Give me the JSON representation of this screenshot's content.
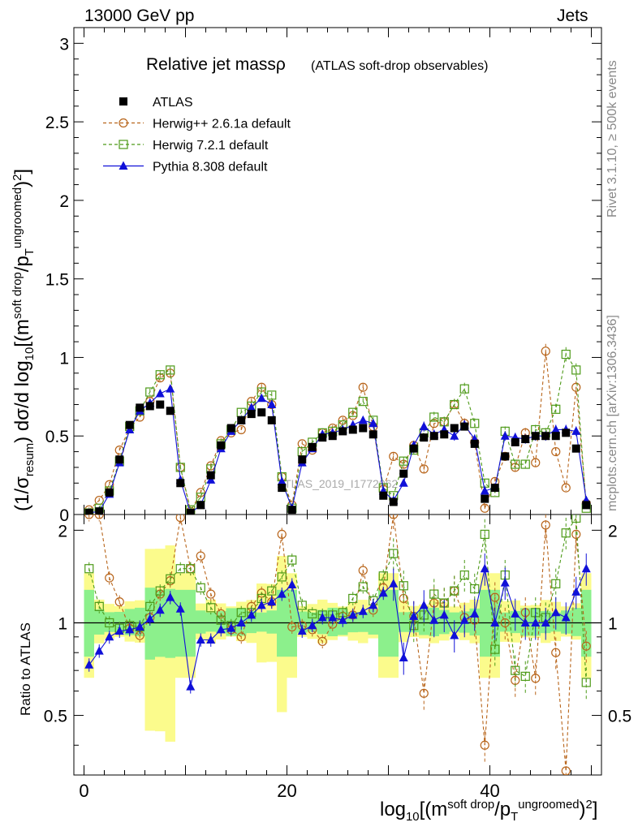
{
  "header": {
    "left": "13000 GeV pp",
    "right": "Jets",
    "rivet": "Rivet 3.1.10, ≥ 500k events",
    "mcplots": "mcplots.cern.ch [arXiv:1306.3436]",
    "watermark": "ATLAS_2019_I1772062"
  },
  "chart_data": {
    "type": "scatter",
    "title": "Relative jet massρ",
    "subtitle": "(ATLAS soft-drop observables)",
    "ylabel": {
      "pre": "(1/σ",
      "sub": "resum",
      "mid": ") dσ/d log",
      "sub2": "10",
      "mid2": "[(m",
      "sup": "soft drop",
      "mid3": "/p",
      "sub3": "T",
      "sup2": "ungroomed",
      "post": ")",
      "sup3": "2",
      "post2": "]"
    },
    "xlabel": {
      "pre": "log",
      "sub": "10",
      "mid": "[(m",
      "sup": "soft drop",
      "mid2": "/p",
      "sub2": "T",
      "sup2": "ungroomed",
      "post": ")",
      "sup3": "2",
      "post2": "]"
    },
    "ratio_ylabel": "Ratio to ATLAS",
    "xlim": [
      -1,
      51
    ],
    "ylim": [
      0,
      3.1
    ],
    "ratio_ylim": [
      0.32,
      2.25
    ],
    "x_ticks": [
      "0",
      "20",
      "40"
    ],
    "y_ticks": [
      "0",
      "0.5",
      "1",
      "1.5",
      "2",
      "2.5",
      "3"
    ],
    "ratio_ticks": [
      "0.5",
      "1",
      "2"
    ],
    "x": [
      0.5,
      1.5,
      2.5,
      3.5,
      4.5,
      5.5,
      6.5,
      7.5,
      8.5,
      9.5,
      10.5,
      11.5,
      12.5,
      13.5,
      14.5,
      15.5,
      16.5,
      17.5,
      18.5,
      19.5,
      20.5,
      21.5,
      22.5,
      23.5,
      24.5,
      25.5,
      26.5,
      27.5,
      28.5,
      29.5,
      30.5,
      31.5,
      32.5,
      33.5,
      34.5,
      35.5,
      36.5,
      37.5,
      38.5,
      39.5,
      40.5,
      41.5,
      42.5,
      43.5,
      44.5,
      45.5,
      46.5,
      47.5,
      48.5,
      49.5
    ],
    "legend": [
      "ATLAS",
      "Herwig++ 2.6.1a default",
      "Herwig 7.2.1 default",
      "Pythia 8.308 default"
    ],
    "colors": {
      "ATLAS": "#000000",
      "Herwig++": "#b8651b",
      "Herwig7": "#4d9a18",
      "Pythia": "#1010d8",
      "band_inner": "#8cf08c",
      "band_outer": "#fbfb8c"
    },
    "series": [
      {
        "name": "ATLAS",
        "values": [
          0.01,
          0.02,
          0.14,
          0.35,
          0.57,
          0.68,
          0.69,
          0.7,
          0.66,
          0.2,
          0.01,
          0.06,
          0.25,
          0.44,
          0.55,
          0.6,
          0.64,
          0.65,
          0.6,
          0.17,
          0.03,
          0.35,
          0.43,
          0.49,
          0.5,
          0.53,
          0.54,
          0.55,
          0.51,
          0.12,
          0.08,
          0.26,
          0.42,
          0.49,
          0.5,
          0.51,
          0.55,
          0.56,
          0.45,
          0.1,
          0.17,
          0.37,
          0.46,
          0.48,
          0.5,
          0.5,
          0.5,
          0.52,
          0.42,
          0.06
        ]
      },
      {
        "name": "Herwig++ 2.6.1a default",
        "values": [
          0.03,
          0.09,
          0.19,
          0.41,
          0.55,
          0.62,
          0.72,
          0.87,
          0.9,
          0.3,
          0.02,
          0.14,
          0.31,
          0.47,
          0.52,
          0.54,
          0.72,
          0.81,
          0.7,
          0.24,
          0.06,
          0.45,
          0.41,
          0.52,
          0.55,
          0.6,
          0.63,
          0.81,
          0.56,
          0.16,
          0.37,
          0.32,
          0.44,
          0.29,
          0.58,
          0.59,
          0.7,
          0.58,
          0.46,
          0.04,
          0.21,
          0.37,
          0.3,
          0.52,
          0.33,
          1.04,
          0.4,
          0.17,
          0.81,
          0.07
        ]
      },
      {
        "name": "Herwig 7.2.1 default",
        "values": [
          0.01,
          0.04,
          0.15,
          0.34,
          0.56,
          0.66,
          0.78,
          0.89,
          0.92,
          0.3,
          0.03,
          0.11,
          0.29,
          0.45,
          0.54,
          0.65,
          0.69,
          0.78,
          0.76,
          0.24,
          0.04,
          0.4,
          0.46,
          0.52,
          0.53,
          0.57,
          0.65,
          0.72,
          0.6,
          0.17,
          0.12,
          0.34,
          0.41,
          0.52,
          0.62,
          0.59,
          0.7,
          0.8,
          0.58,
          0.2,
          0.14,
          0.53,
          0.32,
          0.32,
          0.54,
          0.52,
          0.67,
          1.02,
          0.92,
          0.04
        ]
      },
      {
        "name": "Pythia 8.308 default",
        "values": [
          0.01,
          0.02,
          0.13,
          0.33,
          0.54,
          0.66,
          0.71,
          0.77,
          0.8,
          0.22,
          0.01,
          0.06,
          0.22,
          0.42,
          0.53,
          0.6,
          0.68,
          0.74,
          0.7,
          0.21,
          0.04,
          0.33,
          0.42,
          0.51,
          0.52,
          0.54,
          0.57,
          0.6,
          0.58,
          0.15,
          0.09,
          0.2,
          0.44,
          0.56,
          0.51,
          0.54,
          0.5,
          0.57,
          0.48,
          0.15,
          0.17,
          0.5,
          0.49,
          0.48,
          0.5,
          0.5,
          0.54,
          0.54,
          0.53,
          0.09
        ]
      }
    ],
    "ratio_series": [
      {
        "name": "Herwig++ 2.6.1a default",
        "values": [
          2.3,
          2.3,
          1.4,
          1.17,
          0.96,
          0.91,
          1.04,
          1.24,
          1.37,
          2.2,
          1.5,
          1.65,
          1.24,
          1.07,
          0.95,
          0.9,
          1.13,
          1.25,
          1.17,
          1.94,
          0.97,
          0.98,
          0.95,
          0.87,
          0.99,
          1.05,
          1.06,
          1.48,
          1.1,
          1.3,
          2.4,
          1.2,
          1.05,
          0.59,
          1.16,
          1.16,
          1.27,
          1.04,
          1.02,
          0.4,
          1.21,
          1.0,
          0.65,
          1.08,
          0.66,
          2.08,
          0.8,
          0.33,
          1.94,
          0.84
        ]
      },
      {
        "name": "Herwig 7.2.1 default",
        "values": [
          1.5,
          1.13,
          1.0,
          0.96,
          0.98,
          0.97,
          1.13,
          1.27,
          1.39,
          1.5,
          1.5,
          1.3,
          1.12,
          1.02,
          0.98,
          1.08,
          1.08,
          1.2,
          1.27,
          1.41,
          1.6,
          1.14,
          1.07,
          1.06,
          1.06,
          1.08,
          1.2,
          1.31,
          1.18,
          1.42,
          1.68,
          1.32,
          0.98,
          1.06,
          1.24,
          1.16,
          1.27,
          1.43,
          1.29,
          1.94,
          0.82,
          1.43,
          0.7,
          0.67,
          1.08,
          1.04,
          1.34,
          1.96,
          2.19,
          0.64
        ]
      },
      {
        "name": "Pythia 8.308 default",
        "values": [
          0.73,
          0.81,
          0.9,
          0.94,
          0.95,
          0.97,
          1.03,
          1.1,
          1.21,
          1.11,
          0.62,
          0.88,
          0.88,
          0.95,
          0.96,
          1.0,
          1.06,
          1.14,
          1.17,
          1.24,
          1.33,
          0.94,
          0.98,
          1.04,
          1.04,
          1.02,
          1.06,
          1.09,
          1.14,
          1.25,
          1.34,
          0.77,
          1.05,
          1.14,
          1.02,
          1.06,
          0.91,
          1.02,
          1.07,
          1.5,
          1.0,
          1.35,
          1.07,
          1.0,
          1.0,
          1.0,
          1.08,
          1.04,
          1.26,
          1.5
        ]
      }
    ],
    "grid": false,
    "legend_placement": "top-left"
  }
}
